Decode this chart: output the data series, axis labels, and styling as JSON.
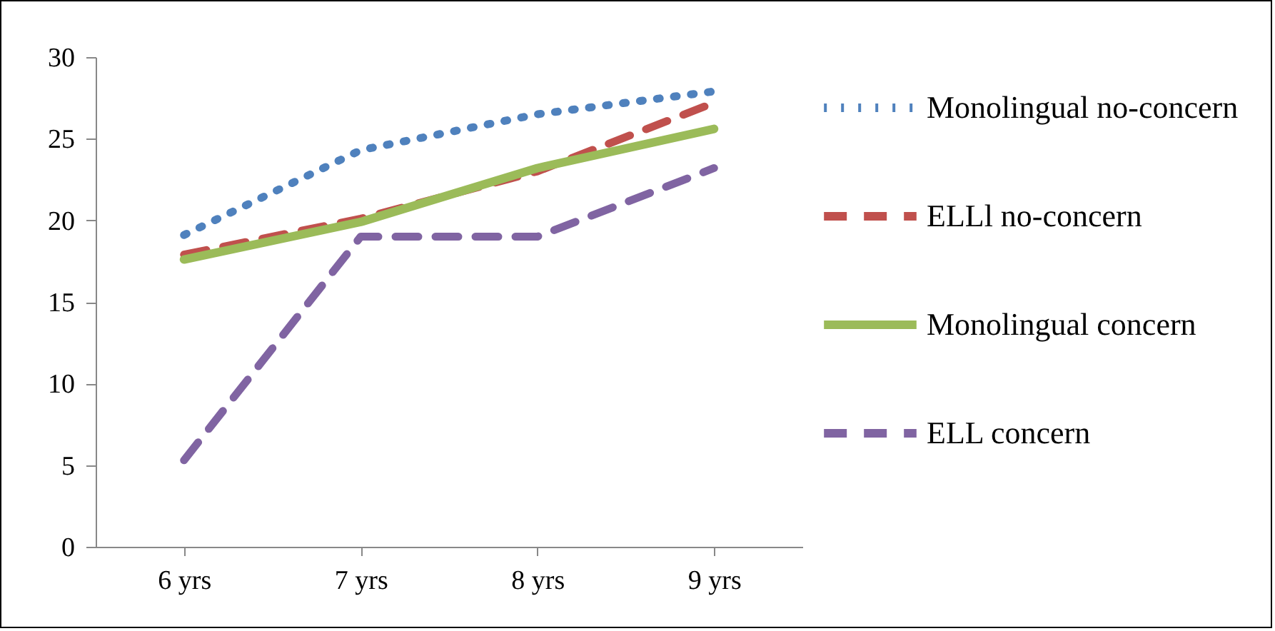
{
  "chart_data": {
    "type": "line",
    "categories": [
      "6 yrs",
      "7 yrs",
      "8 yrs",
      "9 yrs"
    ],
    "ylim": [
      0,
      30
    ],
    "yticks": [
      0,
      5,
      10,
      15,
      20,
      25,
      30
    ],
    "grid": false,
    "legend": "right",
    "marker": "none",
    "series": [
      {
        "name": "Monolingual no-concern",
        "color": "#4f81bd",
        "line_style": "dotted",
        "values": [
          19.1,
          24.3,
          26.5,
          27.9
        ]
      },
      {
        "name": "ELLl no-concern",
        "color": "#c0504d",
        "line_style": "dashed",
        "values": [
          17.9,
          20.1,
          23.0,
          27.2
        ]
      },
      {
        "name": "Monolingual concern",
        "color": "#9bbb59",
        "line_style": "solid",
        "values": [
          17.6,
          19.9,
          23.2,
          25.6
        ]
      },
      {
        "name": "ELL concern",
        "color": "#8064a2",
        "line_style": "dashed",
        "values": [
          5.3,
          19.0,
          19.0,
          23.2
        ]
      }
    ]
  }
}
